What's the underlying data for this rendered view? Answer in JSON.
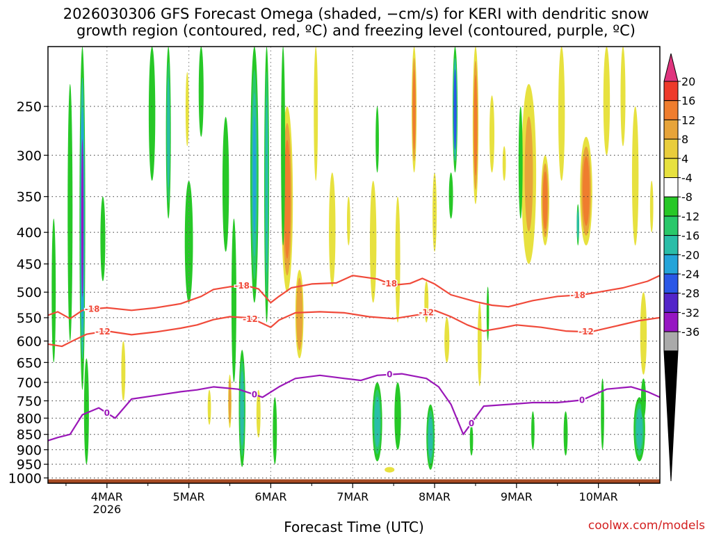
{
  "title_line1": "2026030306 GFS Forecast Omega (shaded, −cm/s) for KERI with dendritic snow",
  "title_line2": "growth region (contoured, red, ºC) and freezing level (contoured, purple, ºC)",
  "x_axis_label": "Forecast Time (UTC)",
  "credit": "coolwx.com/models",
  "chart_data": {
    "type": "heatmap",
    "title": "2026030306 GFS Forecast Omega (shaded, −cm/s) for KERI with dendritic snow growth region (contoured, red, ºC) and freezing level (contoured, purple, ºC)",
    "xlabel": "Forecast Time (UTC)",
    "ylabel": "",
    "x_tick_labels": [
      "4MAR",
      "5MAR",
      "6MAR",
      "7MAR",
      "8MAR",
      "9MAR",
      "10MAR"
    ],
    "x_tick_sublabel": "2026",
    "x_range_days": [
      3.28,
      10.75
    ],
    "y_tick_labels": [
      250,
      300,
      350,
      400,
      450,
      500,
      550,
      600,
      650,
      700,
      750,
      800,
      850,
      900,
      950,
      1000
    ],
    "y_range_hpa": [
      200,
      1020
    ],
    "y_scale": "log-pressure, inverted",
    "grid": true,
    "colorbar_levels": [
      20,
      16,
      12,
      8,
      4,
      -4,
      -8,
      -12,
      -16,
      -20,
      -24,
      -28,
      -32,
      -36
    ],
    "colorbar_colors": [
      "#e0347e",
      "#ee3a2a",
      "#ef7d2e",
      "#e7a43a",
      "#e9cd3c",
      "#e7e13f",
      "#ffffff",
      "#27c827",
      "#29c86a",
      "#2abda8",
      "#24a4d9",
      "#2a57e6",
      "#5325c9",
      "#9616c2",
      "#aaaaaa",
      "#000000"
    ],
    "series": [
      {
        "name": "-18",
        "color": "#f04a3a",
        "x": [
          3.28,
          3.4,
          3.55,
          3.7,
          3.85,
          4.0,
          4.3,
          4.6,
          4.9,
          5.15,
          5.3,
          5.5,
          5.7,
          5.85,
          6.0,
          6.1,
          6.25,
          6.5,
          6.8,
          7.0,
          7.3,
          7.5,
          7.7,
          7.85,
          8.0,
          8.2,
          8.5,
          8.7,
          8.9,
          9.2,
          9.5,
          9.8,
          10.0,
          10.3,
          10.6,
          10.75
        ],
        "y": [
          545,
          538,
          552,
          535,
          532,
          530,
          535,
          530,
          522,
          508,
          495,
          490,
          488,
          494,
          520,
          508,
          492,
          485,
          483,
          470,
          476,
          487,
          484,
          475,
          485,
          505,
          518,
          525,
          528,
          516,
          508,
          505,
          500,
          492,
          480,
          470
        ]
      },
      {
        "name": "-12",
        "color": "#f04a3a",
        "x": [
          3.28,
          3.45,
          3.6,
          3.75,
          4.0,
          4.3,
          4.6,
          4.9,
          5.1,
          5.3,
          5.5,
          5.7,
          5.85,
          6.0,
          6.1,
          6.3,
          6.6,
          6.9,
          7.2,
          7.5,
          7.8,
          8.0,
          8.2,
          8.4,
          8.6,
          8.8,
          9.0,
          9.3,
          9.6,
          9.9,
          10.2,
          10.5,
          10.75
        ],
        "y": [
          607,
          612,
          598,
          585,
          578,
          586,
          580,
          572,
          565,
          554,
          548,
          550,
          558,
          570,
          555,
          540,
          538,
          540,
          548,
          552,
          544,
          535,
          548,
          565,
          578,
          572,
          565,
          570,
          578,
          580,
          568,
          556,
          550
        ]
      },
      {
        "name": "0",
        "color": "#9a17b8",
        "x": [
          3.28,
          3.4,
          3.55,
          3.7,
          3.9,
          4.1,
          4.3,
          4.6,
          4.9,
          5.1,
          5.3,
          5.6,
          5.9,
          6.1,
          6.3,
          6.6,
          6.9,
          7.1,
          7.3,
          7.6,
          7.9,
          8.05,
          8.2,
          8.35,
          8.6,
          8.9,
          9.2,
          9.5,
          9.8,
          10.1,
          10.4,
          10.6,
          10.75
        ],
        "y": [
          870,
          860,
          850,
          790,
          770,
          800,
          745,
          735,
          725,
          720,
          712,
          718,
          740,
          712,
          690,
          682,
          690,
          695,
          682,
          678,
          690,
          712,
          760,
          850,
          765,
          760,
          755,
          755,
          748,
          718,
          712,
          725,
          740
        ]
      }
    ]
  }
}
